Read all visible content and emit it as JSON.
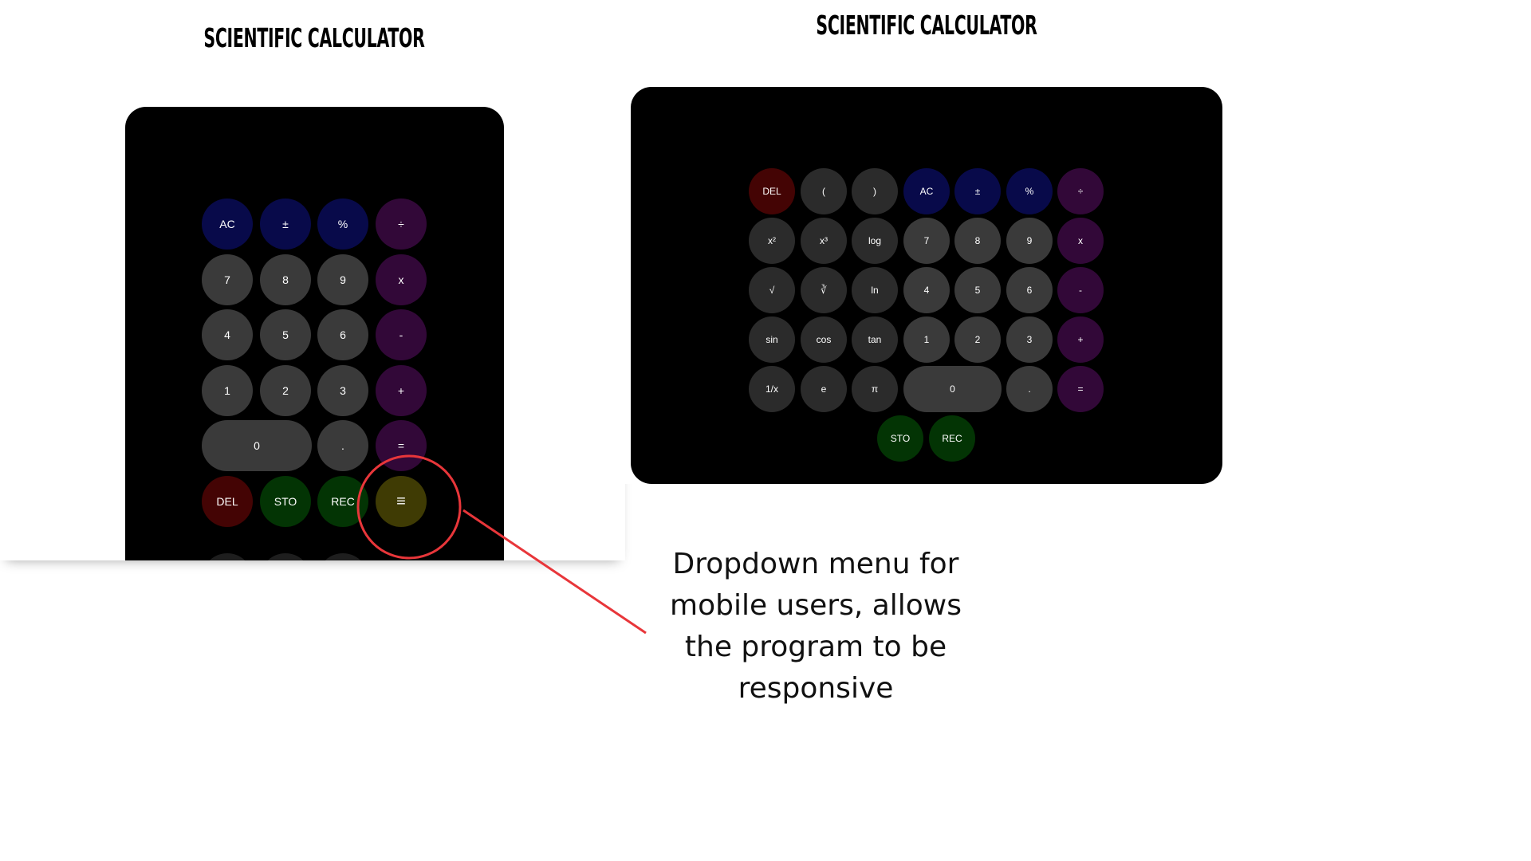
{
  "left_view": {
    "title": "SCIENTIFIC CALCULATOR",
    "keys": [
      {
        "label": "AC",
        "color": "#080a4a"
      },
      {
        "label": "±",
        "color": "#080a4a"
      },
      {
        "label": "%",
        "color": "#080a4a"
      },
      {
        "label": "÷",
        "color": "#320838"
      },
      {
        "label": "7",
        "color": "#3a3a3a"
      },
      {
        "label": "8",
        "color": "#3a3a3a"
      },
      {
        "label": "9",
        "color": "#3a3a3a"
      },
      {
        "label": "x",
        "color": "#320838"
      },
      {
        "label": "4",
        "color": "#3a3a3a"
      },
      {
        "label": "5",
        "color": "#3a3a3a"
      },
      {
        "label": "6",
        "color": "#3a3a3a"
      },
      {
        "label": "-",
        "color": "#320838"
      },
      {
        "label": "1",
        "color": "#3a3a3a"
      },
      {
        "label": "2",
        "color": "#3a3a3a"
      },
      {
        "label": "3",
        "color": "#3a3a3a"
      },
      {
        "label": "+",
        "color": "#320838"
      },
      {
        "label": "0",
        "color": "#3a3a3a"
      },
      {
        "label": ".",
        "color": "#3a3a3a"
      },
      {
        "label": "=",
        "color": "#320838"
      },
      {
        "label": "DEL",
        "color": "#440404"
      },
      {
        "label": "STO",
        "color": "#033404"
      },
      {
        "label": "REC",
        "color": "#033404"
      },
      {
        "label": "≡",
        "color": "#3f3b04"
      }
    ]
  },
  "right_view": {
    "title": "SCIENTIFIC CALCULATOR",
    "keys": [
      {
        "label": "DEL",
        "color": "#440404"
      },
      {
        "label": "(",
        "color": "#2b2b2b"
      },
      {
        "label": ")",
        "color": "#2b2b2b"
      },
      {
        "label": "AC",
        "color": "#080a4a"
      },
      {
        "label": "±",
        "color": "#080a4a"
      },
      {
        "label": "%",
        "color": "#080a4a"
      },
      {
        "label": "÷",
        "color": "#320838"
      },
      {
        "label": "x²",
        "color": "#2b2b2b"
      },
      {
        "label": "x³",
        "color": "#2b2b2b"
      },
      {
        "label": "log",
        "color": "#2b2b2b"
      },
      {
        "label": "7",
        "color": "#3a3a3a"
      },
      {
        "label": "8",
        "color": "#3a3a3a"
      },
      {
        "label": "9",
        "color": "#3a3a3a"
      },
      {
        "label": "x",
        "color": "#320838"
      },
      {
        "label": "√",
        "color": "#2b2b2b"
      },
      {
        "label": "∛",
        "color": "#2b2b2b"
      },
      {
        "label": "ln",
        "color": "#2b2b2b"
      },
      {
        "label": "4",
        "color": "#3a3a3a"
      },
      {
        "label": "5",
        "color": "#3a3a3a"
      },
      {
        "label": "6",
        "color": "#3a3a3a"
      },
      {
        "label": "-",
        "color": "#320838"
      },
      {
        "label": "sin",
        "color": "#2b2b2b"
      },
      {
        "label": "cos",
        "color": "#2b2b2b"
      },
      {
        "label": "tan",
        "color": "#2b2b2b"
      },
      {
        "label": "1",
        "color": "#3a3a3a"
      },
      {
        "label": "2",
        "color": "#3a3a3a"
      },
      {
        "label": "3",
        "color": "#3a3a3a"
      },
      {
        "label": "+",
        "color": "#320838"
      },
      {
        "label": "1/x",
        "color": "#2b2b2b"
      },
      {
        "label": "e",
        "color": "#2b2b2b"
      },
      {
        "label": "π",
        "color": "#2b2b2b"
      },
      {
        "label": "0",
        "color": "#3a3a3a"
      },
      {
        "label": ".",
        "color": "#3a3a3a"
      },
      {
        "label": "=",
        "color": "#320838"
      },
      {
        "label": "STO",
        "color": "#033404"
      },
      {
        "label": "REC",
        "color": "#033404"
      }
    ]
  },
  "annotation": {
    "text": "Dropdown menu for mobile users, allows the program to be responsive",
    "color": "#e8363a"
  }
}
